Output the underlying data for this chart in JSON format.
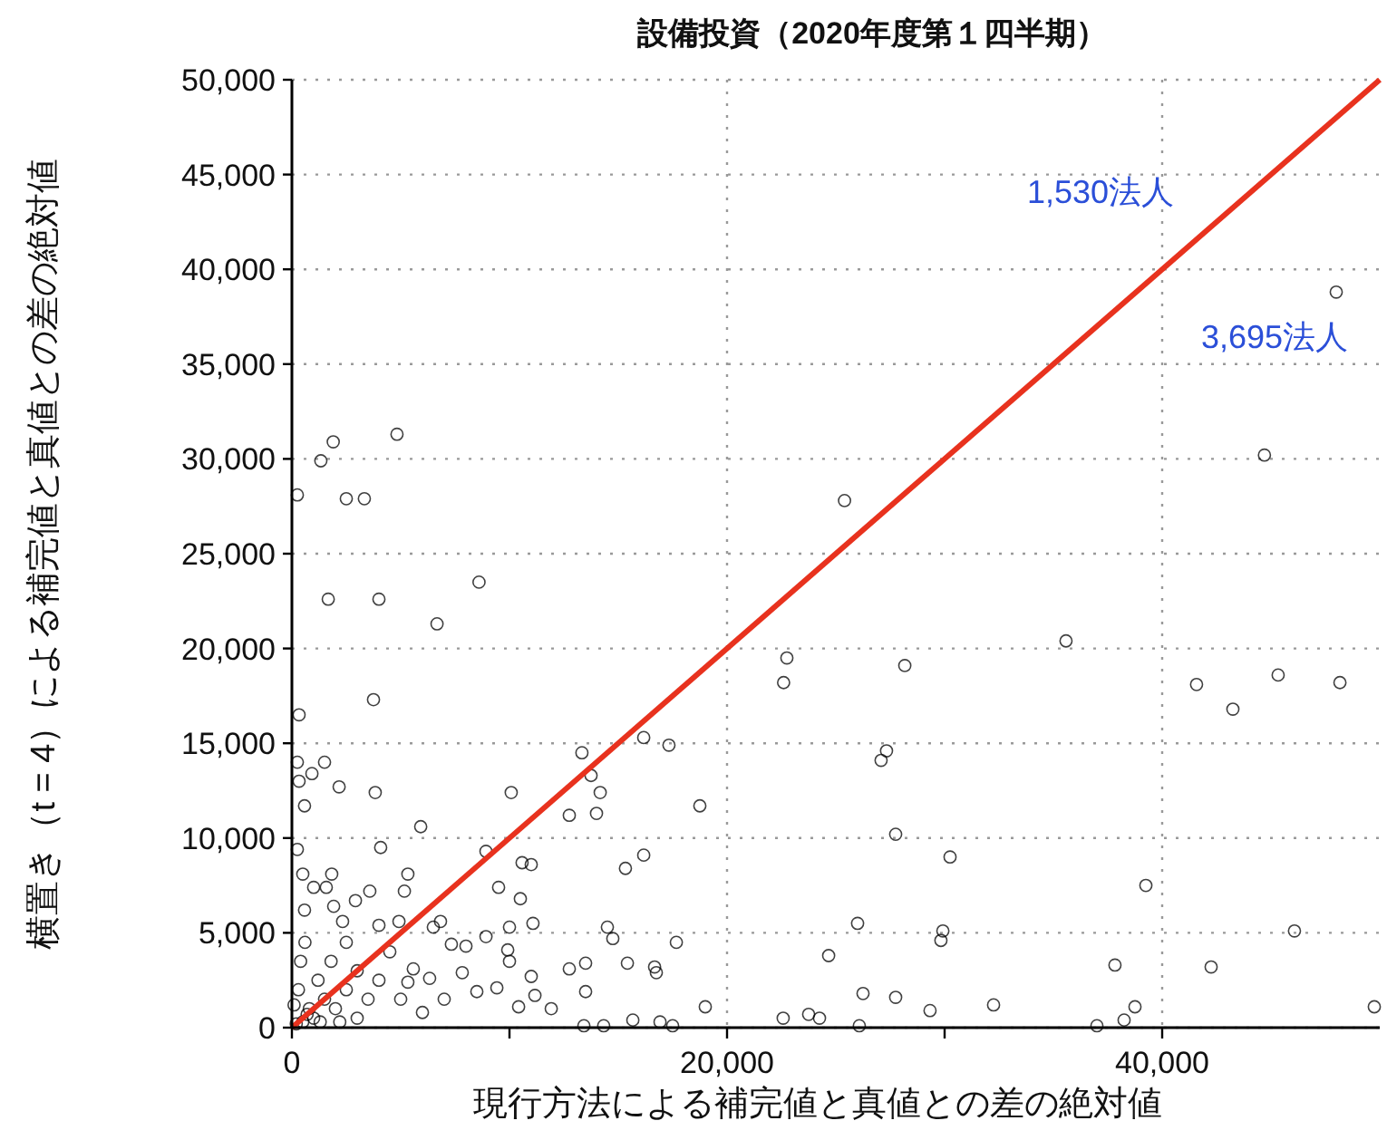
{
  "chart_data": {
    "type": "scatter",
    "title": "設備投資（2020年度第１四半期）",
    "xlabel": "現行方法による補完値と真値との差の絶対値",
    "ylabel": "横置き（t = 4）による補完値と真値との差の絶対値",
    "xlim": [
      0,
      50000
    ],
    "ylim": [
      0,
      50000
    ],
    "xticks": [
      0,
      {
        "value": 10000,
        "label": null
      },
      {
        "value": 20000,
        "label": "20,000"
      },
      {
        "value": 30000,
        "label": null
      },
      {
        "value": 40000,
        "label": "40,000"
      }
    ],
    "yticks": [
      0,
      {
        "value": 5000,
        "label": "5,000"
      },
      {
        "value": 10000,
        "label": "10,000"
      },
      {
        "value": 15000,
        "label": "15,000"
      },
      {
        "value": 20000,
        "label": "20,000"
      },
      {
        "value": 25000,
        "label": "25,000"
      },
      {
        "value": 30000,
        "label": "30,000"
      },
      {
        "value": 35000,
        "label": "35,000"
      },
      {
        "value": 40000,
        "label": "40,000"
      },
      {
        "value": 45000,
        "label": "45,000"
      },
      {
        "value": 50000,
        "label": "50,000"
      }
    ],
    "grid": true,
    "annotations": [
      "1,530法人",
      "3,695法人"
    ],
    "series": [
      {
        "marker": "circle",
        "color": "#000000",
        "x": [
          250,
          1330,
          1900,
          2500,
          3330,
          4830,
          25400,
          48000,
          44700,
          1670,
          4000,
          8600,
          6670,
          330,
          3750,
          22750,
          22600,
          250,
          1500,
          920,
          330,
          2170,
          3830,
          580,
          13330,
          13750,
          10080,
          16170,
          17330,
          12750,
          14000,
          14170,
          18750,
          5920,
          250,
          4080,
          8920,
          10580,
          11000,
          16170,
          15330,
          9500,
          10500,
          5330,
          5170,
          3580,
          500,
          1830,
          1580,
          1000,
          2920,
          1920,
          580,
          10000,
          11080,
          14500,
          14750,
          17670,
          24670,
          2330,
          4000,
          4920,
          6500,
          6830,
          7330,
          8000,
          8920,
          9920,
          10000,
          13500,
          12750,
          11000,
          15420,
          16670,
          16750,
          7830,
          11170,
          13500,
          10420,
          11920,
          19000,
          15670,
          16920,
          17500,
          14330,
          13420,
          22580,
          23750,
          24250,
          9420,
          8500,
          6330,
          5330,
          5580,
          200,
          500,
          800,
          1000,
          1500,
          300,
          1200,
          2000,
          2500,
          400,
          1800,
          3000,
          3500,
          600,
          2500,
          4000,
          5000,
          4500,
          700,
          100,
          1300,
          3000,
          2200,
          6000,
          7000,
          35580,
          28170,
          41580,
          43250,
          45330,
          48170,
          27330,
          27080,
          27750,
          30250,
          39250,
          26000,
          29920,
          29830,
          46080,
          37830,
          42250,
          26250,
          27750,
          29330,
          32250,
          38750,
          38250,
          37000,
          26080,
          49750
        ],
        "values": [
          28100,
          29900,
          30900,
          27900,
          27900,
          31300,
          27800,
          38800,
          30200,
          22600,
          22600,
          23500,
          21300,
          16500,
          17300,
          19500,
          18200,
          14000,
          14000,
          13400,
          13000,
          12700,
          12400,
          11700,
          14500,
          13300,
          12400,
          15300,
          14900,
          11200,
          11300,
          12400,
          11700,
          10600,
          9400,
          9500,
          9300,
          8700,
          8600,
          9100,
          8400,
          7400,
          6800,
          8100,
          7200,
          7200,
          8100,
          8100,
          7400,
          7400,
          6700,
          6400,
          6200,
          5300,
          5500,
          5300,
          4700,
          4500,
          3800,
          5600,
          5400,
          5600,
          5300,
          5600,
          4400,
          4300,
          4800,
          4100,
          3500,
          3400,
          3100,
          2700,
          3400,
          3200,
          2900,
          2900,
          1700,
          1900,
          1100,
          1000,
          1100,
          400,
          300,
          100,
          100,
          100,
          500,
          700,
          500,
          2100,
          1900,
          2600,
          2400,
          3100,
          200,
          300,
          1000,
          500,
          1500,
          2000,
          2500,
          1000,
          2000,
          3500,
          3500,
          3000,
          1500,
          4500,
          4500,
          2500,
          1500,
          4000,
          700,
          1200,
          300,
          500,
          300,
          800,
          1500,
          20400,
          19100,
          18100,
          16800,
          18600,
          18200,
          14600,
          14100,
          10200,
          9000,
          7500,
          5500,
          5100,
          4600,
          5100,
          3300,
          3200,
          1800,
          1600,
          900,
          1200,
          1100,
          400,
          100,
          100,
          1100
        ]
      },
      {
        "type": "line",
        "marker": "none",
        "color": "#e8321e",
        "x": [
          0,
          50000
        ],
        "values": [
          0,
          50000
        ]
      }
    ]
  }
}
